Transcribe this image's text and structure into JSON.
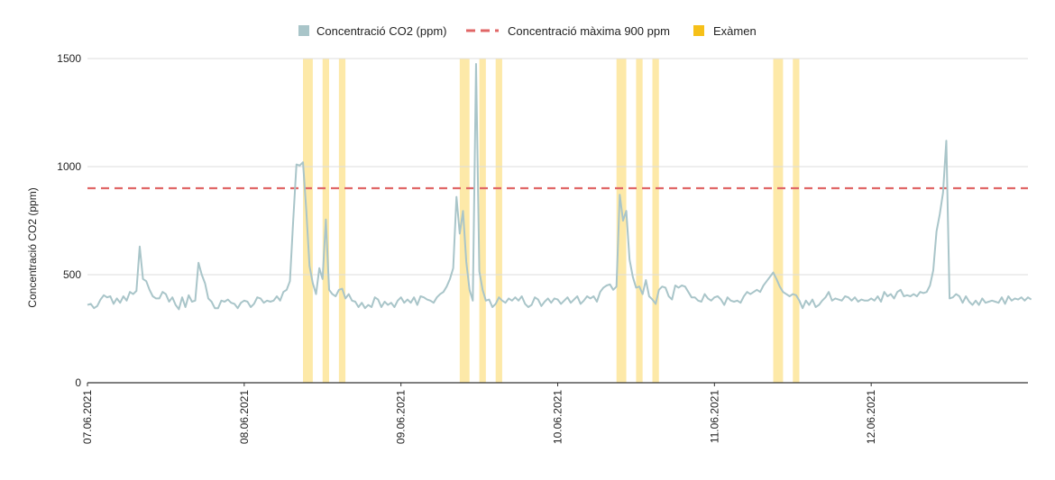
{
  "chart_data": {
    "type": "line",
    "title": "",
    "xlabel": "",
    "ylabel": "Concentració CO2 (ppm)",
    "ylim": [
      0,
      1500
    ],
    "yticks": [
      0,
      500,
      1000,
      1500
    ],
    "xlim": [
      "07.06.2021 00:00",
      "13.06.2021 00:00"
    ],
    "xtick_labels": [
      "07.06.2021",
      "08.06.2021",
      "09.06.2021",
      "10.06.2021",
      "11.06.2021",
      "12.06.2021"
    ],
    "grid": true,
    "legend_position": "top",
    "series": [
      {
        "name": "Concentració CO2 (ppm)",
        "type": "line",
        "color": "#a9c5c9",
        "sample_interval_hours": 0.5,
        "start": "07.06.2021 00:00",
        "values": [
          360,
          365,
          345,
          355,
          385,
          405,
          395,
          400,
          365,
          390,
          370,
          400,
          380,
          420,
          410,
          425,
          630,
          480,
          470,
          430,
          400,
          390,
          390,
          420,
          410,
          375,
          395,
          360,
          340,
          395,
          350,
          405,
          375,
          380,
          555,
          500,
          460,
          390,
          375,
          345,
          345,
          380,
          375,
          385,
          370,
          365,
          345,
          370,
          380,
          375,
          350,
          365,
          395,
          390,
          370,
          380,
          375,
          380,
          400,
          380,
          420,
          430,
          470,
          750,
          1010,
          1005,
          1020,
          800,
          540,
          460,
          410,
          530,
          480,
          755,
          430,
          410,
          400,
          430,
          435,
          390,
          410,
          380,
          375,
          350,
          370,
          345,
          360,
          350,
          395,
          385,
          350,
          375,
          360,
          370,
          350,
          380,
          395,
          370,
          385,
          370,
          395,
          360,
          400,
          395,
          385,
          380,
          370,
          395,
          410,
          420,
          445,
          480,
          530,
          860,
          690,
          795,
          560,
          430,
          380,
          1475,
          515,
          430,
          380,
          385,
          350,
          365,
          395,
          380,
          370,
          390,
          380,
          395,
          380,
          400,
          365,
          350,
          360,
          395,
          385,
          355,
          375,
          390,
          370,
          390,
          385,
          365,
          380,
          395,
          370,
          385,
          400,
          365,
          380,
          400,
          390,
          400,
          375,
          420,
          440,
          450,
          455,
          430,
          445,
          870,
          750,
          795,
          570,
          490,
          440,
          445,
          410,
          475,
          400,
          385,
          365,
          430,
          445,
          440,
          400,
          385,
          450,
          440,
          450,
          445,
          420,
          395,
          395,
          380,
          375,
          410,
          390,
          380,
          395,
          400,
          385,
          360,
          395,
          380,
          375,
          380,
          370,
          400,
          420,
          410,
          420,
          430,
          420,
          450,
          470,
          490,
          510,
          480,
          445,
          420,
          410,
          400,
          410,
          405,
          380,
          345,
          380,
          360,
          385,
          350,
          360,
          380,
          395,
          420,
          380,
          390,
          385,
          380,
          400,
          395,
          380,
          395,
          375,
          385,
          380,
          380,
          390,
          380,
          400,
          375,
          420,
          400,
          410,
          390,
          420,
          430,
          400,
          405,
          400,
          410,
          400,
          420,
          415,
          420,
          450,
          520,
          700,
          780,
          880,
          1120,
          390,
          395,
          410,
          400,
          370,
          400,
          375,
          360,
          380,
          360,
          390,
          370,
          375,
          380,
          375,
          370,
          395,
          365,
          400,
          380,
          390,
          385,
          395,
          380,
          395,
          385
        ]
      },
      {
        "name": "Concentració màxima 900 ppm",
        "type": "line",
        "style": "dashed",
        "color": "#e06666",
        "value": 900
      },
      {
        "name": "Exàmen",
        "type": "area",
        "color": "#f6c019",
        "fill_color": "#fde9a8",
        "intervals": [
          [
            "08.06.2021 09:00",
            "08.06.2021 10:30"
          ],
          [
            "08.06.2021 12:00",
            "08.06.2021 13:00"
          ],
          [
            "08.06.2021 14:30",
            "08.06.2021 15:30"
          ],
          [
            "09.06.2021 09:00",
            "09.06.2021 10:30"
          ],
          [
            "09.06.2021 12:00",
            "09.06.2021 13:00"
          ],
          [
            "09.06.2021 14:30",
            "09.06.2021 15:30"
          ],
          [
            "10.06.2021 09:00",
            "10.06.2021 10:30"
          ],
          [
            "10.06.2021 12:00",
            "10.06.2021 13:00"
          ],
          [
            "10.06.2021 14:30",
            "10.06.2021 15:30"
          ],
          [
            "11.06.2021 09:00",
            "11.06.2021 10:30"
          ],
          [
            "11.06.2021 12:00",
            "11.06.2021 13:00"
          ]
        ]
      }
    ]
  }
}
